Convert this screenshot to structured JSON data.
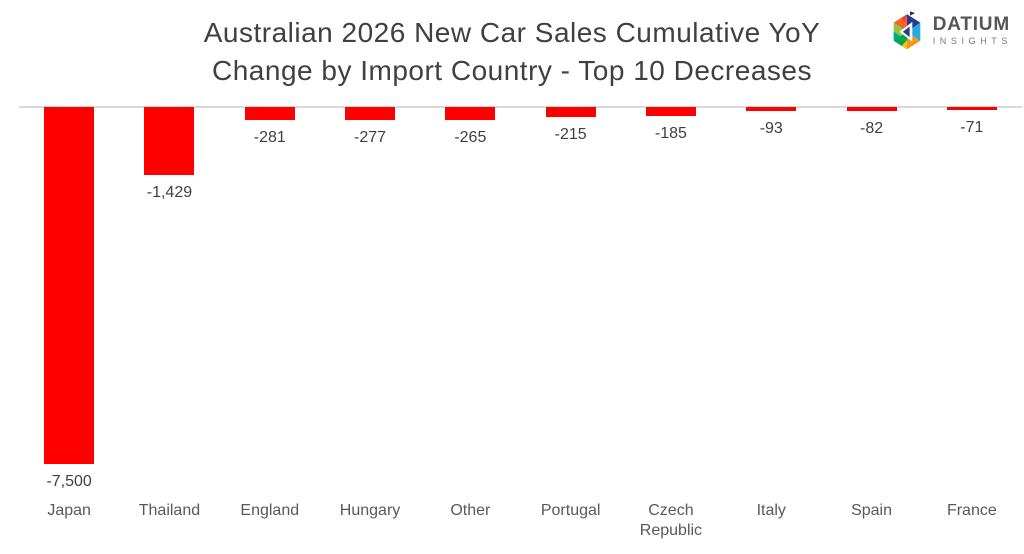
{
  "chart_data": {
    "type": "bar",
    "title": "Australian 2026 New Car Sales Cumulative YoY Change by Import Country - Top 10 Decreases",
    "title_lines": [
      "Australian 2026 New Car Sales Cumulative YoY",
      "Change by Import Country - Top 10 Decreases"
    ],
    "categories": [
      "Japan",
      "Thailand",
      "England",
      "Hungary",
      "Other",
      "Portugal",
      "Czech Republic",
      "Italy",
      "Spain",
      "France"
    ],
    "values": [
      -7500,
      -1429,
      -281,
      -277,
      -265,
      -215,
      -185,
      -93,
      -82,
      -71
    ],
    "value_labels": [
      "-7,500",
      "-1,429",
      "-281",
      "-277",
      "-265",
      "-215",
      "-185",
      "-93",
      "-82",
      "-71"
    ],
    "xlabel": "",
    "ylabel": "",
    "ylim": [
      -7900,
      0
    ],
    "grid": false,
    "legend": false,
    "bar_color": "#FF0000",
    "axis_line_color": "#D9D9D9",
    "value_label_color": "#404040",
    "category_label_color": "#595959",
    "title_color": "#404040"
  },
  "logo": {
    "name": "DATIUM",
    "sub": "INSIGHTS",
    "name_color": "#55565A",
    "sub_color": "#77787B"
  }
}
